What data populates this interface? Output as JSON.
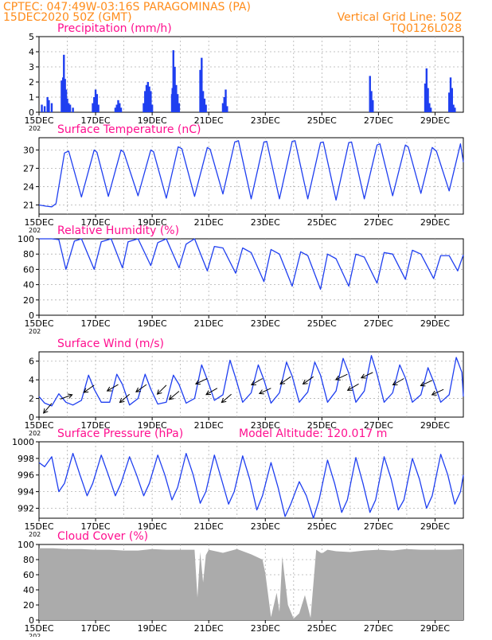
{
  "header": {
    "line1_left": "CPTEC:   047:49W-03:16S   PARAGOMINAS (PA)",
    "line2_left": "15DEC2020 50Z (GMT)",
    "line2_right": "Vertical Grid Line: 50Z",
    "line3_right": "TQ0126L028"
  },
  "colors": {
    "header": "#ff8c1a",
    "title": "#ff0f8f",
    "series": "#1f3ff0",
    "bars": "#1f3ff0",
    "cloud": "#ababab",
    "grid": "#b0b0b0",
    "axis": "#000000",
    "wind_arrow": "#000000"
  },
  "x_axis": {
    "start_day": 15,
    "end_day": 30,
    "tick_days": [
      15,
      17,
      19,
      21,
      23,
      25,
      27,
      29
    ],
    "tick_labels": [
      "15DEC",
      "17DEC",
      "19DEC",
      "21DEC",
      "23DEC",
      "25DEC",
      "27DEC",
      "29DEC"
    ],
    "year_label": "202"
  },
  "panels": [
    {
      "id": "precip",
      "title": "Precipitation (mm/h)",
      "ylim": [
        0,
        5
      ],
      "yticks": [
        0,
        1,
        2,
        3,
        4,
        5
      ],
      "yticklabels": [
        "0",
        "1",
        "2",
        "3",
        "4",
        "5"
      ]
    },
    {
      "id": "temp",
      "title": "Surface Temperature (nC)",
      "ylim": [
        19.5,
        32
      ],
      "yticks": [
        21,
        24,
        27,
        30
      ],
      "yticklabels": [
        "21",
        "24",
        "27",
        "30"
      ]
    },
    {
      "id": "rh",
      "title": "Relative Humidity (%)",
      "ylim": [
        0,
        100
      ],
      "yticks": [
        0,
        20,
        40,
        60,
        80,
        100
      ],
      "yticklabels": [
        "0",
        "20",
        "40",
        "60",
        "80",
        "100"
      ]
    },
    {
      "id": "wind",
      "title": "Surface Wind (m/s)",
      "ylim": [
        0,
        7
      ],
      "yticks": [
        0,
        2,
        4,
        6
      ],
      "yticklabels": [
        "0",
        "2",
        "4",
        "6"
      ]
    },
    {
      "id": "press",
      "title": "Surface Pressure (hPa)",
      "extra_label": "Model Altitude: 120.017 m",
      "ylim": [
        990.8,
        1000
      ],
      "yticks": [
        992,
        994,
        996,
        998,
        1000
      ],
      "yticklabels": [
        "992",
        "994",
        "996",
        "998",
        "1000"
      ]
    },
    {
      "id": "cloud",
      "title": "Cloud Cover (%)",
      "ylim": [
        0,
        100
      ],
      "yticks": [
        0,
        20,
        40,
        60,
        80,
        100
      ],
      "yticklabels": [
        "0",
        "20",
        "40",
        "60",
        "80",
        "100"
      ]
    }
  ],
  "chart_data": [
    {
      "type": "bar",
      "title": "Precipitation (mm/h)",
      "ylabel": "mm/h",
      "ylim": [
        0,
        5
      ],
      "x": [
        15.1,
        15.2,
        15.3,
        15.35,
        15.45,
        15.8,
        15.85,
        15.88,
        15.92,
        15.96,
        16.0,
        16.05,
        16.1,
        16.2,
        16.9,
        16.95,
        17.0,
        17.05,
        17.1,
        17.7,
        17.75,
        17.8,
        17.85,
        17.9,
        18.7,
        18.75,
        18.8,
        18.85,
        18.9,
        18.95,
        19.0,
        19.7,
        19.72,
        19.75,
        19.8,
        19.85,
        19.9,
        19.95,
        20.7,
        20.75,
        20.8,
        20.85,
        20.9,
        21.5,
        21.55,
        21.6,
        21.65,
        26.7,
        26.75,
        26.8,
        28.65,
        28.7,
        28.75,
        28.8,
        28.85,
        29.5,
        29.55,
        29.6,
        29.65,
        29.7
      ],
      "values": [
        0.5,
        0.4,
        1.0,
        0.8,
        0.6,
        2.1,
        2.3,
        3.8,
        2.2,
        1.5,
        0.9,
        0.6,
        0.5,
        0.3,
        0.6,
        1.0,
        1.5,
        1.2,
        0.5,
        0.3,
        0.5,
        0.8,
        0.6,
        0.3,
        0.6,
        1.4,
        1.8,
        2.0,
        1.7,
        1.4,
        0.5,
        1.2,
        1.6,
        4.1,
        3.0,
        1.8,
        1.2,
        0.6,
        2.8,
        3.6,
        1.4,
        0.9,
        0.5,
        0.6,
        1.0,
        1.5,
        0.4,
        2.4,
        1.4,
        0.8,
        1.9,
        2.9,
        1.6,
        0.6,
        0.3,
        1.3,
        2.3,
        1.6,
        0.5,
        0.3
      ]
    },
    {
      "type": "line",
      "title": "Surface Temperature (nC)",
      "ylabel": "nC",
      "ylim": [
        19.5,
        32
      ],
      "x": [
        15.0,
        15.25,
        15.45,
        15.6,
        15.9,
        16.05,
        16.5,
        16.95,
        17.05,
        17.45,
        17.9,
        18.0,
        18.5,
        18.95,
        19.05,
        19.5,
        19.92,
        20.05,
        20.5,
        20.95,
        21.05,
        21.5,
        21.92,
        22.05,
        22.5,
        22.95,
        23.05,
        23.5,
        23.95,
        24.05,
        24.5,
        24.95,
        25.05,
        25.5,
        25.95,
        26.05,
        26.5,
        26.95,
        27.05,
        27.5,
        27.95,
        28.05,
        28.5,
        28.9,
        29.05,
        29.5,
        29.9,
        30.0
      ],
      "values": [
        21.0,
        20.8,
        20.7,
        21.2,
        29.5,
        29.8,
        22.3,
        30.0,
        29.6,
        22.4,
        30.0,
        29.6,
        22.5,
        30.0,
        29.7,
        22.1,
        30.5,
        30.2,
        22.4,
        30.4,
        30.1,
        22.8,
        31.3,
        31.5,
        22.0,
        31.3,
        31.4,
        22.0,
        31.4,
        31.5,
        22.0,
        31.2,
        31.3,
        21.8,
        31.2,
        31.3,
        22.0,
        30.8,
        31.0,
        22.5,
        30.8,
        30.5,
        22.9,
        30.4,
        29.8,
        23.3,
        31.0,
        28.0
      ]
    },
    {
      "type": "line",
      "title": "Relative Humidity (%)",
      "ylabel": "%",
      "ylim": [
        0,
        100
      ],
      "x": [
        15.0,
        15.25,
        15.45,
        15.7,
        15.95,
        16.25,
        16.5,
        16.95,
        17.2,
        17.55,
        17.95,
        18.15,
        18.5,
        18.95,
        19.2,
        19.5,
        19.95,
        20.2,
        20.5,
        20.95,
        21.2,
        21.5,
        21.95,
        22.2,
        22.5,
        22.95,
        23.2,
        23.5,
        23.95,
        24.25,
        24.5,
        24.95,
        25.2,
        25.5,
        25.95,
        26.2,
        26.5,
        26.95,
        27.2,
        27.5,
        27.95,
        28.2,
        28.5,
        28.95,
        29.2,
        29.5,
        29.8,
        30.0
      ],
      "values": [
        100,
        100,
        100,
        99,
        60,
        97,
        100,
        60,
        96,
        100,
        62,
        96,
        100,
        65,
        95,
        100,
        62,
        93,
        100,
        58,
        90,
        88,
        55,
        88,
        82,
        44,
        86,
        80,
        38,
        83,
        78,
        34,
        80,
        74,
        38,
        80,
        76,
        42,
        82,
        80,
        47,
        85,
        80,
        48,
        78,
        78,
        58,
        79
      ]
    },
    {
      "type": "line",
      "title": "Surface Wind (m/s)",
      "ylabel": "m/s",
      "ylim": [
        0,
        7
      ],
      "x": [
        15.0,
        15.2,
        15.45,
        15.7,
        15.95,
        16.2,
        16.5,
        16.75,
        16.95,
        17.2,
        17.5,
        17.75,
        17.95,
        18.2,
        18.5,
        18.75,
        18.95,
        19.2,
        19.5,
        19.75,
        19.95,
        20.2,
        20.5,
        20.75,
        20.95,
        21.2,
        21.5,
        21.75,
        21.95,
        22.2,
        22.5,
        22.75,
        22.95,
        23.2,
        23.5,
        23.75,
        23.95,
        24.2,
        24.5,
        24.75,
        24.95,
        25.2,
        25.5,
        25.75,
        25.95,
        26.2,
        26.5,
        26.75,
        26.95,
        27.2,
        27.5,
        27.75,
        27.95,
        28.2,
        28.5,
        28.75,
        28.95,
        29.2,
        29.5,
        29.75,
        29.95,
        30.0
      ],
      "values": [
        2.2,
        1.5,
        1.2,
        2.5,
        1.6,
        1.3,
        1.8,
        4.5,
        3.0,
        1.6,
        1.6,
        4.6,
        3.5,
        1.3,
        2.0,
        4.6,
        3.0,
        1.4,
        1.6,
        4.5,
        3.5,
        1.5,
        2.0,
        5.6,
        4.0,
        1.8,
        2.4,
        6.1,
        4.2,
        1.6,
        2.6,
        5.6,
        4.0,
        1.5,
        2.6,
        5.9,
        4.4,
        1.6,
        2.7,
        5.9,
        4.5,
        1.6,
        2.8,
        6.3,
        4.7,
        1.6,
        2.8,
        6.6,
        4.6,
        1.6,
        2.6,
        5.6,
        4.2,
        1.6,
        2.4,
        5.3,
        3.8,
        1.6,
        2.4,
        6.4,
        4.8,
        2.2
      ]
    },
    {
      "type": "line",
      "title": "Surface Pressure (hPa)",
      "ylabel": "hPa",
      "ylim": [
        990.8,
        1000
      ],
      "x": [
        15.0,
        15.2,
        15.45,
        15.7,
        15.9,
        16.2,
        16.45,
        16.7,
        16.9,
        17.2,
        17.45,
        17.7,
        17.9,
        18.2,
        18.45,
        18.7,
        18.9,
        19.2,
        19.45,
        19.7,
        19.9,
        20.2,
        20.45,
        20.7,
        20.9,
        21.2,
        21.45,
        21.7,
        21.9,
        22.2,
        22.45,
        22.7,
        22.9,
        23.2,
        23.45,
        23.7,
        23.9,
        24.2,
        24.45,
        24.7,
        24.9,
        25.2,
        25.45,
        25.7,
        25.9,
        26.2,
        26.45,
        26.7,
        26.9,
        27.2,
        27.45,
        27.7,
        27.9,
        28.2,
        28.45,
        28.7,
        28.9,
        29.2,
        29.45,
        29.7,
        29.9,
        30.0
      ],
      "values": [
        997.5,
        997.0,
        998.2,
        994.0,
        995.0,
        998.6,
        996.0,
        993.5,
        995.0,
        998.4,
        996.0,
        993.5,
        995.0,
        998.2,
        996.0,
        993.5,
        995.0,
        998.4,
        996.0,
        993.0,
        994.5,
        998.6,
        996.0,
        992.6,
        994.0,
        998.4,
        995.5,
        992.5,
        994.0,
        998.3,
        995.5,
        991.8,
        993.5,
        997.5,
        994.5,
        991.0,
        992.5,
        995.2,
        993.5,
        990.8,
        993.0,
        997.8,
        995.0,
        991.5,
        993.0,
        998.1,
        995.0,
        991.5,
        993.0,
        998.2,
        995.5,
        991.8,
        993.0,
        998.0,
        995.5,
        992.0,
        993.5,
        998.5,
        996.0,
        992.5,
        994.0,
        996.0
      ]
    },
    {
      "type": "area",
      "title": "Cloud Cover (%)",
      "ylabel": "%",
      "ylim": [
        0,
        100
      ],
      "x": [
        15.0,
        15.5,
        16.0,
        16.5,
        17.0,
        17.5,
        18.0,
        18.5,
        19.0,
        19.5,
        20.0,
        20.5,
        20.6,
        20.7,
        20.8,
        20.9,
        21.0,
        21.5,
        22.0,
        22.5,
        22.9,
        23.0,
        23.2,
        23.4,
        23.5,
        23.6,
        23.8,
        24.0,
        24.2,
        24.4,
        24.6,
        24.8,
        25.0,
        25.2,
        25.5,
        26.0,
        26.5,
        27.0,
        27.5,
        28.0,
        28.5,
        29.0,
        29.5,
        30.0
      ],
      "values": [
        95,
        95,
        94,
        94,
        93,
        93,
        92,
        92,
        94,
        93,
        93,
        93,
        30,
        90,
        50,
        86,
        93,
        89,
        94,
        87,
        80,
        62,
        4,
        36,
        11,
        84,
        20,
        2,
        9,
        33,
        3,
        93,
        88,
        93,
        91,
        90,
        92,
        93,
        92,
        94,
        93,
        93,
        93,
        94
      ]
    },
    {
      "type": "scatter",
      "title": "Surface Wind direction (arrows)",
      "x": [
        15.45,
        15.75,
        16.95,
        17.8,
        18.2,
        18.8,
        19.5,
        19.95,
        20.95,
        21.3,
        21.8,
        22.9,
        23.2,
        23.9,
        24.7,
        25.9,
        26.3,
        26.8,
        27.9,
        28.9,
        29.3
      ],
      "direction_deg": [
        50,
        200,
        35,
        30,
        40,
        35,
        45,
        40,
        25,
        30,
        40,
        30,
        25,
        35,
        35,
        25,
        30,
        25,
        30,
        25,
        25
      ],
      "speed": [
        1.5,
        2.2,
        4.5,
        4.6,
        3.0,
        4.6,
        4.5,
        3.5,
        5.6,
        4.0,
        3.0,
        5.6,
        4.0,
        5.9,
        5.9,
        6.3,
        4.7,
        6.6,
        5.6,
        5.3,
        3.8
      ]
    }
  ]
}
